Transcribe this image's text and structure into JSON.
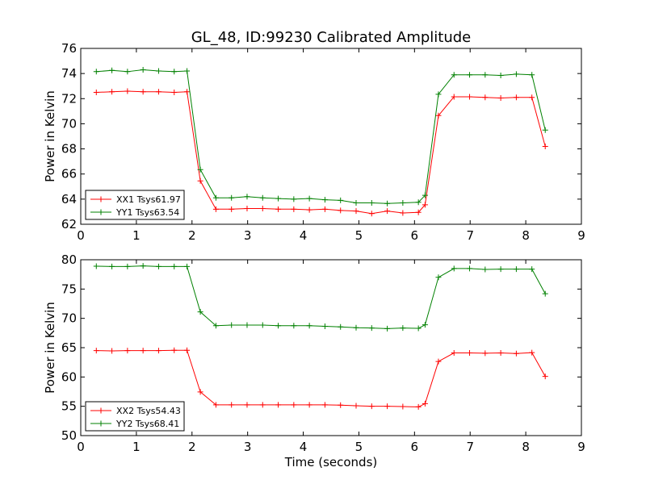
{
  "figure": {
    "title": "GL_48, ID:99230 Calibrated Amplitude",
    "xlabel": "Time (seconds)"
  },
  "chart_data": [
    {
      "type": "line",
      "xlim": [
        0,
        9
      ],
      "ylim": [
        62,
        76
      ],
      "xticks": [
        0,
        1,
        2,
        3,
        4,
        5,
        6,
        7,
        8,
        9
      ],
      "yticks": [
        62,
        64,
        66,
        68,
        70,
        72,
        74,
        76
      ],
      "ylabel": "Power in Kelvin",
      "xlabel": "",
      "legend_position": "lower-left",
      "x": [
        0.28,
        0.56,
        0.84,
        1.12,
        1.4,
        1.68,
        1.91,
        2.15,
        2.43,
        2.71,
        2.99,
        3.27,
        3.55,
        3.83,
        4.11,
        4.39,
        4.67,
        4.95,
        5.23,
        5.51,
        5.79,
        6.07,
        6.19,
        6.43,
        6.71,
        6.99,
        7.27,
        7.55,
        7.83,
        8.11,
        8.35
      ],
      "series": [
        {
          "name": "XX1 Tsys61.97",
          "color": "#ff0000",
          "values": [
            72.5,
            72.55,
            72.6,
            72.55,
            72.55,
            72.5,
            72.55,
            65.45,
            63.2,
            63.2,
            63.25,
            63.25,
            63.2,
            63.2,
            63.15,
            63.2,
            63.1,
            63.05,
            62.85,
            63.05,
            62.9,
            62.95,
            63.55,
            70.65,
            72.15,
            72.15,
            72.1,
            72.05,
            72.1,
            72.1,
            68.2
          ]
        },
        {
          "name": "YY1 Tsys63.54",
          "color": "#008000",
          "values": [
            74.15,
            74.25,
            74.15,
            74.3,
            74.2,
            74.15,
            74.2,
            66.35,
            64.1,
            64.1,
            64.2,
            64.1,
            64.05,
            64.0,
            64.05,
            63.95,
            63.9,
            63.7,
            63.7,
            63.65,
            63.7,
            63.75,
            64.3,
            72.35,
            73.9,
            73.9,
            73.9,
            73.85,
            73.95,
            73.9,
            69.5
          ]
        }
      ]
    },
    {
      "type": "line",
      "xlim": [
        0,
        9
      ],
      "ylim": [
        50,
        80
      ],
      "xticks": [
        0,
        1,
        2,
        3,
        4,
        5,
        6,
        7,
        8,
        9
      ],
      "yticks": [
        50,
        55,
        60,
        65,
        70,
        75,
        80
      ],
      "ylabel": "Power in Kelvin",
      "xlabel": "Time (seconds)",
      "legend_position": "lower-left",
      "x": [
        0.28,
        0.56,
        0.84,
        1.12,
        1.4,
        1.68,
        1.91,
        2.15,
        2.43,
        2.71,
        2.99,
        3.27,
        3.55,
        3.83,
        4.11,
        4.39,
        4.67,
        4.95,
        5.23,
        5.51,
        5.79,
        6.07,
        6.19,
        6.43,
        6.71,
        6.99,
        7.27,
        7.55,
        7.83,
        8.11,
        8.35
      ],
      "series": [
        {
          "name": "XX2 Tsys54.43",
          "color": "#ff0000",
          "values": [
            64.5,
            64.45,
            64.5,
            64.5,
            64.5,
            64.55,
            64.55,
            57.45,
            55.25,
            55.25,
            55.25,
            55.25,
            55.25,
            55.25,
            55.25,
            55.25,
            55.2,
            55.1,
            55.0,
            55.0,
            54.95,
            54.9,
            55.45,
            62.65,
            64.1,
            64.1,
            64.05,
            64.1,
            64.0,
            64.15,
            60.1
          ]
        },
        {
          "name": "YY2 Tsys68.41",
          "color": "#008000",
          "values": [
            78.9,
            78.85,
            78.85,
            78.95,
            78.85,
            78.85,
            78.85,
            71.1,
            68.75,
            68.85,
            68.85,
            68.85,
            68.75,
            68.75,
            68.75,
            68.65,
            68.55,
            68.4,
            68.35,
            68.25,
            68.35,
            68.3,
            68.9,
            77.0,
            78.5,
            78.5,
            78.35,
            78.4,
            78.4,
            78.4,
            74.2
          ]
        }
      ]
    }
  ]
}
